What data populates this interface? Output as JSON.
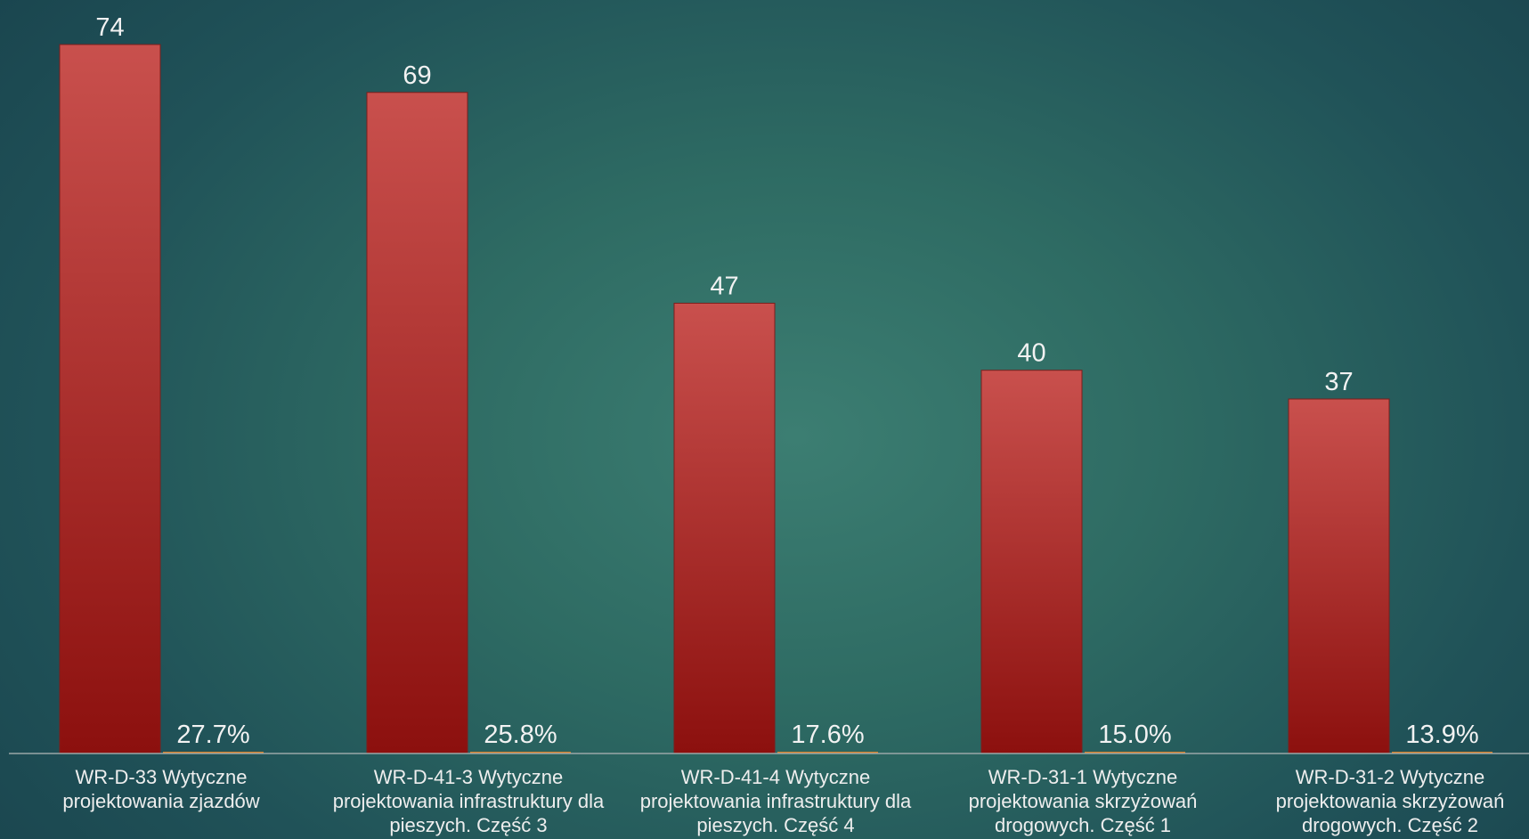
{
  "chart_data": {
    "type": "bar",
    "categories": [
      [
        "WR-D-33 Wytyczne",
        "projektowania zjazdów"
      ],
      [
        "WR-D-41-3 Wytyczne",
        "projektowania infrastruktury dla",
        "pieszych. Część 3"
      ],
      [
        "WR-D-41-4 Wytyczne",
        "projektowania infrastruktury dla",
        "pieszych. Część 4"
      ],
      [
        "WR-D-31-1 Wytyczne",
        "projektowania skrzyżowań",
        "drogowych. Część 1"
      ],
      [
        "WR-D-31-2 Wytyczne",
        "projektowania skrzyżowań",
        "drogowych. Część 2"
      ]
    ],
    "series": [
      {
        "values": [
          74,
          69,
          47,
          40,
          37
        ],
        "labels": [
          "74",
          "69",
          "47",
          "40",
          "37"
        ],
        "color": "#c0403d"
      },
      {
        "values": [
          27.7,
          25.8,
          17.6,
          15.0,
          13.9
        ],
        "labels": [
          "27.7%",
          "25.8%",
          "17.6%",
          "15.0%",
          "13.9%"
        ],
        "color": "#d9822b"
      }
    ],
    "ylim": [
      0,
      74
    ],
    "grid": false,
    "legend": "none"
  }
}
